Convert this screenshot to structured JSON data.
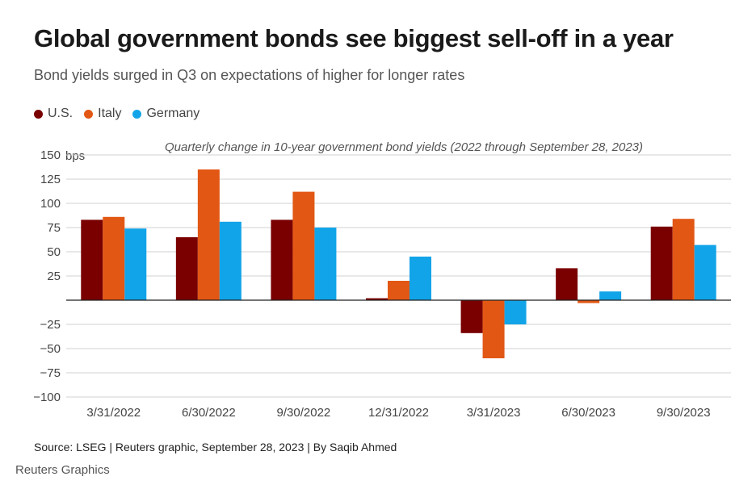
{
  "title": "Global government bonds see biggest sell-off in a year",
  "subtitle": "Bond yields surged in Q3 on expectations of higher for longer rates",
  "source": "Source: LSEG | Reuters graphic, September 28, 2023 | By Saqib Ahmed",
  "brand": "Reuters Graphics",
  "colors": {
    "us": "#7a0000",
    "italy": "#e25714",
    "germany": "#12a4e8",
    "grid": "#d0d0d0",
    "axis": "#222222"
  },
  "chart_data": {
    "type": "bar",
    "title": "",
    "annotation": "Quarterly change in 10-year government bond yields (2022 through September 28, 2023)",
    "unit_label": "bps",
    "xlabel": "",
    "ylabel": "",
    "ylim": [
      -100,
      150
    ],
    "yticks": [
      -100,
      -75,
      -50,
      -25,
      0,
      25,
      50,
      75,
      100,
      125,
      150
    ],
    "ytick_labels": [
      "−100",
      "−75",
      "−50",
      "−25",
      "",
      "25",
      "50",
      "75",
      "100",
      "125",
      "150"
    ],
    "grid": true,
    "legend_position": "top-left",
    "categories": [
      "3/31/2022",
      "6/30/2022",
      "9/30/2022",
      "12/31/2022",
      "3/31/2023",
      "6/30/2023",
      "9/30/2023"
    ],
    "series": [
      {
        "name": "U.S.",
        "color": "#7a0000",
        "values": [
          83,
          65,
          83,
          2,
          -34,
          33,
          76
        ]
      },
      {
        "name": "Italy",
        "color": "#e25714",
        "values": [
          86,
          135,
          112,
          20,
          -60,
          -3,
          84
        ]
      },
      {
        "name": "Germany",
        "color": "#12a4e8",
        "values": [
          74,
          81,
          75,
          45,
          -25,
          9,
          57
        ]
      }
    ]
  }
}
